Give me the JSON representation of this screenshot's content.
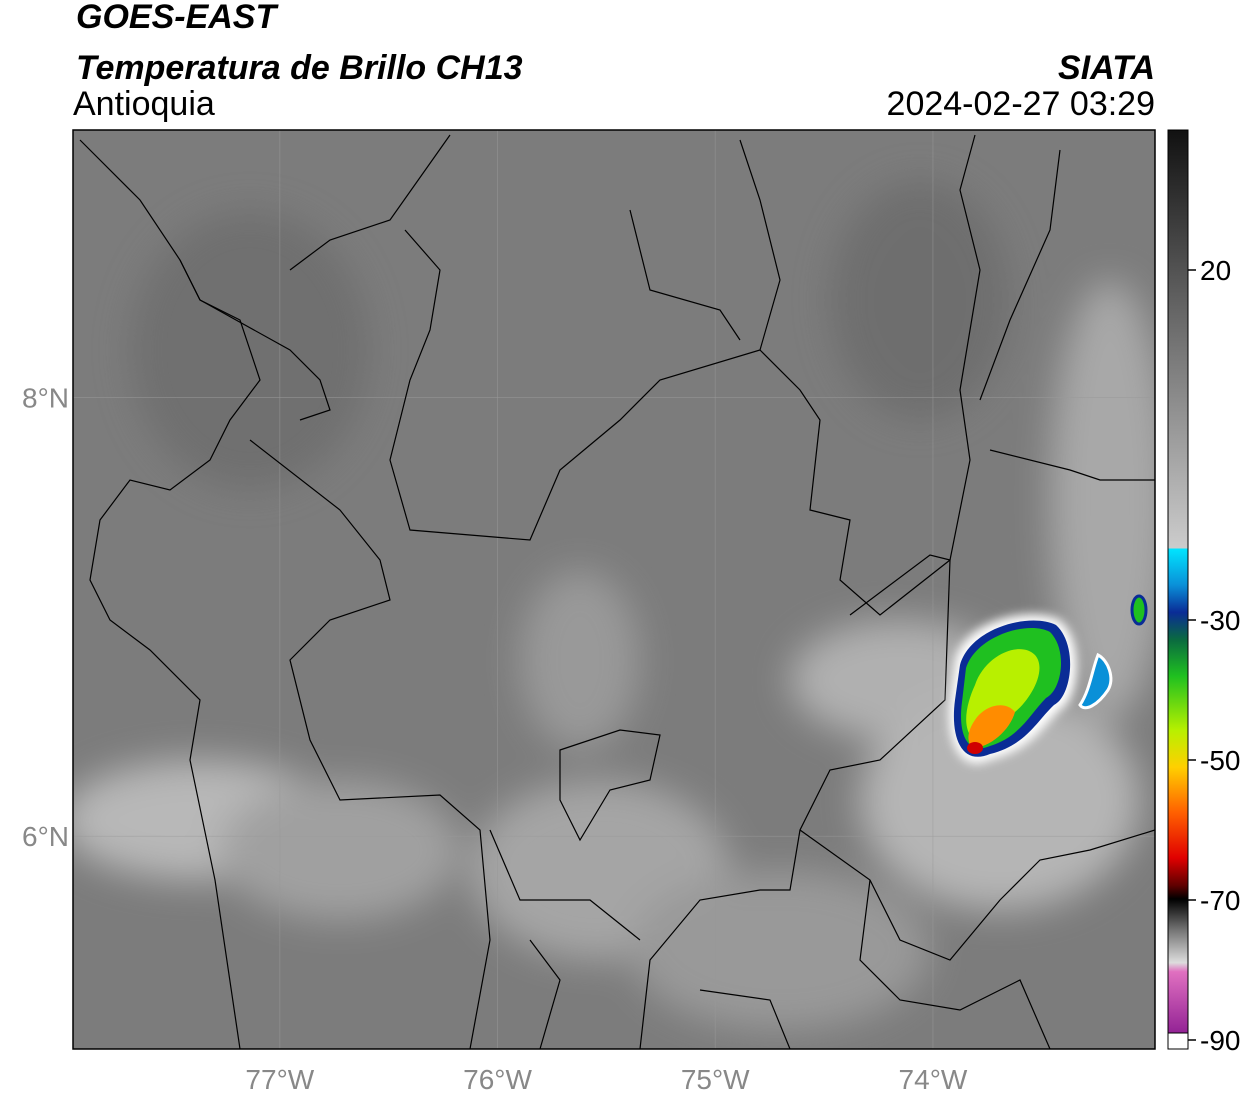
{
  "header": {
    "title": "GOES-EAST",
    "subtitle": "Temperatura de Brillo CH13",
    "region": "Antioquia",
    "source": "SIATA",
    "datetime": "2024-02-27 03:29"
  },
  "map": {
    "xlim": [
      -77.95,
      -72.98
    ],
    "ylim": [
      5.03,
      9.22
    ],
    "xticks": [
      {
        "value": -77,
        "label": "77°W"
      },
      {
        "value": -76,
        "label": "76°W"
      },
      {
        "value": -75,
        "label": "75°W"
      },
      {
        "value": -74,
        "label": "74°W"
      }
    ],
    "yticks": [
      {
        "value": 8,
        "label": "8°N"
      },
      {
        "value": 6,
        "label": "6°N"
      }
    ]
  },
  "colorbar": {
    "lim": [
      -90,
      40
    ],
    "ticks": [
      20,
      -30,
      -50,
      -70,
      -90
    ]
  }
}
